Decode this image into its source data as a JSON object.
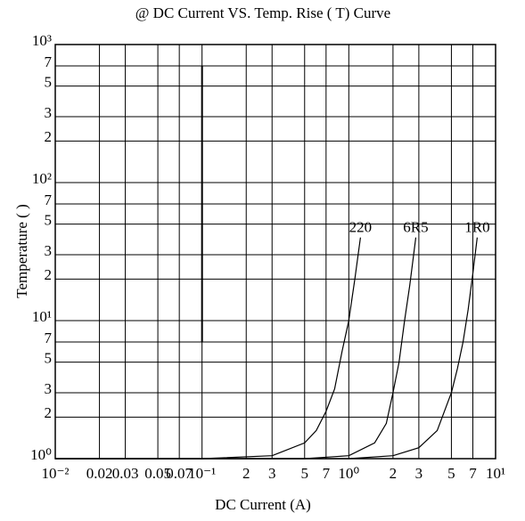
{
  "chart_data": {
    "type": "line",
    "title": "@ DC Current VS. Temp. Rise (    T) Curve",
    "x_label": "DC Current (A)",
    "y_label": "Temperature (      )",
    "log_x": true,
    "log_y": true,
    "grid": true,
    "xlim": [
      0.01,
      10
    ],
    "ylim": [
      1,
      1000
    ],
    "xticks": [
      {
        "value": 0.01,
        "label": "10⁻²"
      },
      0.02,
      0.03,
      0.05,
      0.07,
      {
        "value": 0.1,
        "label": "10⁻¹"
      },
      {
        "value": 0.2,
        "label": "2"
      },
      {
        "value": 0.3,
        "label": "3"
      },
      {
        "value": 0.5,
        "label": "5"
      },
      {
        "value": 0.7,
        "label": "7"
      },
      {
        "value": 1,
        "label": "10⁰"
      },
      {
        "value": 2,
        "label": "2"
      },
      {
        "value": 3,
        "label": "3"
      },
      {
        "value": 5,
        "label": "5"
      },
      {
        "value": 7,
        "label": "7"
      },
      {
        "value": 10,
        "label": "10¹"
      }
    ],
    "yticks": [
      {
        "value": 1,
        "label": "10⁰"
      },
      2,
      3,
      5,
      7,
      {
        "value": 10,
        "label": "10¹"
      },
      {
        "value": 20,
        "label": "2"
      },
      {
        "value": 30,
        "label": "3"
      },
      {
        "value": 50,
        "label": "5"
      },
      {
        "value": 70,
        "label": "7"
      },
      {
        "value": 100,
        "label": "10²"
      },
      {
        "value": 200,
        "label": "2"
      },
      {
        "value": 300,
        "label": "3"
      },
      {
        "value": 500,
        "label": "5"
      },
      {
        "value": 700,
        "label": "7"
      },
      {
        "value": 1000,
        "label": "10³"
      }
    ],
    "vline": {
      "x": 0.1,
      "ymin": 7,
      "ymax": 700,
      "color": "#000000"
    },
    "series": [
      {
        "name": "220",
        "color": "#000000",
        "x": [
          0.01,
          0.1,
          0.3,
          0.5,
          0.6,
          0.7,
          0.8,
          0.9,
          1.0,
          1.1,
          1.2
        ],
        "values": [
          1,
          1,
          1.05,
          1.3,
          1.6,
          2.2,
          3.2,
          6,
          10,
          20,
          40
        ]
      },
      {
        "name": "6R5",
        "color": "#000000",
        "x": [
          0.01,
          0.5,
          1.0,
          1.5,
          1.8,
          2.0,
          2.2,
          2.4,
          2.6,
          2.86
        ],
        "values": [
          1,
          1,
          1.05,
          1.3,
          1.8,
          3,
          5,
          10,
          18,
          40
        ]
      },
      {
        "name": "1R0",
        "color": "#000000",
        "x": [
          0.01,
          1,
          2,
          3,
          4,
          5,
          5.5,
          6,
          6.5,
          7,
          7.5
        ],
        "values": [
          1,
          1,
          1.05,
          1.2,
          1.6,
          3,
          4.5,
          7,
          12,
          22,
          40
        ]
      }
    ]
  }
}
